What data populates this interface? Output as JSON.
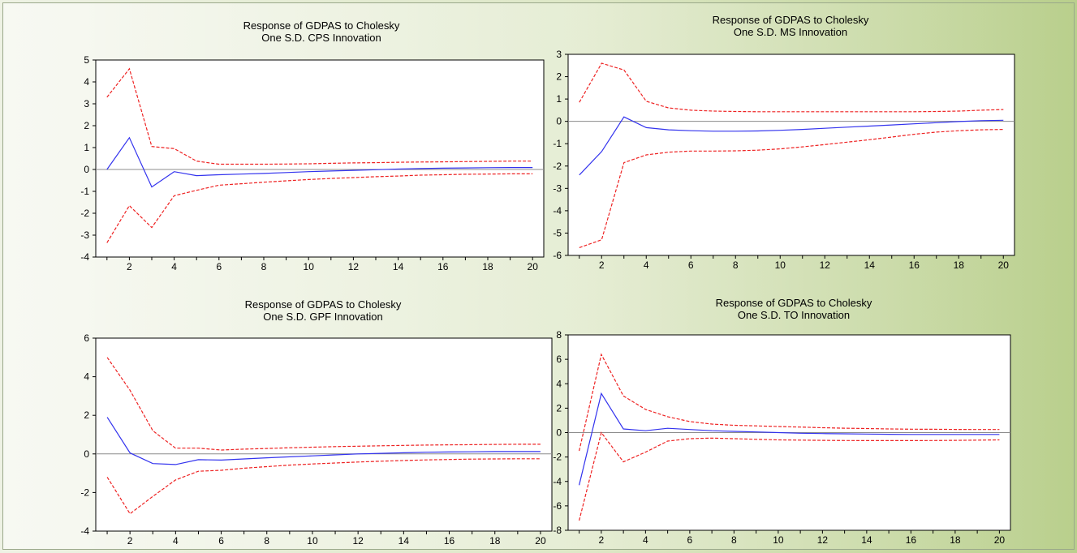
{
  "colors": {
    "response": "#3333ee",
    "band": "#ee2222",
    "zero": "#8c8c8c",
    "plot_bg": "#ffffff"
  },
  "chart_data": [
    {
      "type": "line",
      "title": "Response of GDPAS to Cholesky",
      "subtitle": "One S.D. CPS Innovation",
      "x": [
        1,
        2,
        3,
        4,
        5,
        6,
        7,
        8,
        9,
        10,
        11,
        12,
        13,
        14,
        15,
        16,
        17,
        18,
        19,
        20
      ],
      "xticks": [
        2,
        4,
        6,
        8,
        10,
        12,
        14,
        16,
        18,
        20
      ],
      "ylim": [
        -4,
        5
      ],
      "yticks": [
        -4,
        -3,
        -2,
        -1,
        0,
        1,
        2,
        3,
        4,
        5
      ],
      "series": [
        {
          "role": "response",
          "values": [
            0.0,
            1.45,
            -0.8,
            -0.1,
            -0.28,
            -0.24,
            -0.21,
            -0.18,
            -0.14,
            -0.1,
            -0.07,
            -0.04,
            -0.01,
            0.02,
            0.04,
            0.06,
            0.07,
            0.08,
            0.09,
            0.09
          ]
        },
        {
          "role": "upper",
          "values": [
            3.3,
            4.6,
            1.05,
            0.95,
            0.38,
            0.24,
            0.24,
            0.24,
            0.25,
            0.26,
            0.28,
            0.3,
            0.31,
            0.33,
            0.34,
            0.35,
            0.36,
            0.37,
            0.38,
            0.38
          ]
        },
        {
          "role": "lower",
          "values": [
            -3.35,
            -1.65,
            -2.65,
            -1.2,
            -0.95,
            -0.72,
            -0.65,
            -0.58,
            -0.52,
            -0.46,
            -0.41,
            -0.37,
            -0.33,
            -0.3,
            -0.26,
            -0.24,
            -0.22,
            -0.21,
            -0.2,
            -0.2
          ]
        }
      ]
    },
    {
      "type": "line",
      "title": "Response of GDPAS to Cholesky",
      "subtitle": "One S.D. MS Innovation",
      "x": [
        1,
        2,
        3,
        4,
        5,
        6,
        7,
        8,
        9,
        10,
        11,
        12,
        13,
        14,
        15,
        16,
        17,
        18,
        19,
        20
      ],
      "xticks": [
        2,
        4,
        6,
        8,
        10,
        12,
        14,
        16,
        18,
        20
      ],
      "ylim": [
        -6,
        3
      ],
      "yticks": [
        -6,
        -5,
        -4,
        -3,
        -2,
        -1,
        0,
        1,
        2,
        3
      ],
      "series": [
        {
          "role": "response",
          "values": [
            -2.4,
            -1.35,
            0.2,
            -0.28,
            -0.38,
            -0.42,
            -0.44,
            -0.44,
            -0.43,
            -0.4,
            -0.36,
            -0.31,
            -0.26,
            -0.21,
            -0.16,
            -0.11,
            -0.06,
            -0.01,
            0.03,
            0.05
          ]
        },
        {
          "role": "upper",
          "values": [
            0.85,
            2.6,
            2.3,
            0.9,
            0.6,
            0.5,
            0.46,
            0.44,
            0.43,
            0.43,
            0.43,
            0.43,
            0.43,
            0.43,
            0.43,
            0.43,
            0.44,
            0.46,
            0.5,
            0.53
          ]
        },
        {
          "role": "lower",
          "values": [
            -5.65,
            -5.3,
            -1.85,
            -1.5,
            -1.38,
            -1.33,
            -1.33,
            -1.32,
            -1.29,
            -1.23,
            -1.14,
            -1.04,
            -0.93,
            -0.82,
            -0.7,
            -0.58,
            -0.48,
            -0.42,
            -0.38,
            -0.36
          ]
        }
      ]
    },
    {
      "type": "line",
      "title": "Response of GDPAS to Cholesky",
      "subtitle": "One S.D. GPF Innovation",
      "x": [
        1,
        2,
        3,
        4,
        5,
        6,
        7,
        8,
        9,
        10,
        11,
        12,
        13,
        14,
        15,
        16,
        17,
        18,
        19,
        20
      ],
      "xticks": [
        2,
        4,
        6,
        8,
        10,
        12,
        14,
        16,
        18,
        20
      ],
      "ylim": [
        -4,
        6
      ],
      "yticks": [
        -4,
        -2,
        0,
        2,
        4,
        6
      ],
      "series": [
        {
          "role": "response",
          "values": [
            1.9,
            0.05,
            -0.5,
            -0.55,
            -0.3,
            -0.32,
            -0.26,
            -0.2,
            -0.15,
            -0.1,
            -0.05,
            0.0,
            0.03,
            0.06,
            0.09,
            0.1,
            0.11,
            0.12,
            0.12,
            0.12
          ]
        },
        {
          "role": "upper",
          "values": [
            5.0,
            3.3,
            1.2,
            0.3,
            0.3,
            0.2,
            0.25,
            0.28,
            0.32,
            0.35,
            0.38,
            0.4,
            0.42,
            0.44,
            0.46,
            0.47,
            0.48,
            0.49,
            0.5,
            0.5
          ]
        },
        {
          "role": "lower",
          "values": [
            -1.2,
            -3.1,
            -2.2,
            -1.35,
            -0.9,
            -0.85,
            -0.74,
            -0.66,
            -0.58,
            -0.52,
            -0.47,
            -0.42,
            -0.38,
            -0.34,
            -0.31,
            -0.29,
            -0.27,
            -0.26,
            -0.25,
            -0.25
          ]
        }
      ]
    },
    {
      "type": "line",
      "title": "Response of GDPAS to Cholesky",
      "subtitle": "One S.D. TO Innovation",
      "x": [
        1,
        2,
        3,
        4,
        5,
        6,
        7,
        8,
        9,
        10,
        11,
        12,
        13,
        14,
        15,
        16,
        17,
        18,
        19,
        20
      ],
      "xticks": [
        2,
        4,
        6,
        8,
        10,
        12,
        14,
        16,
        18,
        20
      ],
      "ylim": [
        -8,
        8
      ],
      "yticks": [
        -8,
        -6,
        -4,
        -2,
        0,
        2,
        4,
        6,
        8
      ],
      "series": [
        {
          "role": "response",
          "values": [
            -4.3,
            3.2,
            0.3,
            0.15,
            0.35,
            0.25,
            0.15,
            0.1,
            0.05,
            0.0,
            -0.05,
            -0.08,
            -0.1,
            -0.12,
            -0.14,
            -0.15,
            -0.15,
            -0.15,
            -0.15,
            -0.15
          ]
        },
        {
          "role": "upper",
          "values": [
            -1.5,
            6.4,
            3.0,
            1.9,
            1.3,
            0.9,
            0.7,
            0.6,
            0.55,
            0.5,
            0.45,
            0.4,
            0.36,
            0.33,
            0.3,
            0.28,
            0.27,
            0.26,
            0.25,
            0.25
          ]
        },
        {
          "role": "lower",
          "values": [
            -7.2,
            0.0,
            -2.4,
            -1.6,
            -0.7,
            -0.5,
            -0.45,
            -0.5,
            -0.55,
            -0.6,
            -0.62,
            -0.64,
            -0.65,
            -0.66,
            -0.66,
            -0.66,
            -0.65,
            -0.64,
            -0.62,
            -0.6
          ]
        }
      ]
    }
  ]
}
